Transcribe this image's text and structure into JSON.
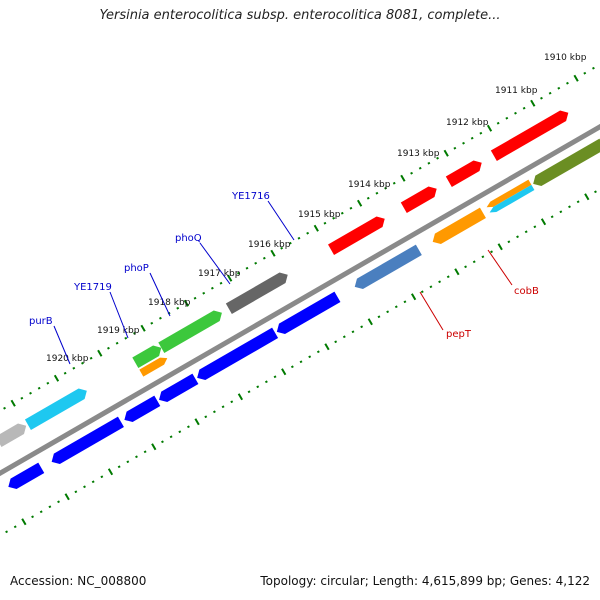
{
  "title": "Yersinia enterocolitica subsp. enterocolitica 8081, complete...",
  "footer": {
    "accession": "Accession: NC_008800",
    "stats": "Topology: circular; Length: 4,615,899 bp; Genes: 4,122"
  },
  "scale_labels": [
    "1910 kbp",
    "1911 kbp",
    "1912 kbp",
    "1913 kbp",
    "1914 kbp",
    "1915 kbp",
    "1916 kbp",
    "1917 kbp",
    "1918 kbp",
    "1919 kbp",
    "1920 kbp"
  ],
  "gene_labels": [
    {
      "text": "YE1716",
      "color": "#0000cc"
    },
    {
      "text": "phoQ",
      "color": "#0000cc"
    },
    {
      "text": "phoP",
      "color": "#0000cc"
    },
    {
      "text": "YE1719",
      "color": "#0000cc"
    },
    {
      "text": "purB",
      "color": "#0000cc"
    },
    {
      "text": "cobB",
      "color": "#cc0000"
    },
    {
      "text": "pepT",
      "color": "#cc0000"
    }
  ],
  "colors": {
    "tick": "#007a00",
    "backbone": "#8a8a8a",
    "cds_reverse": "#0000ff",
    "cds_red": "#ff0000",
    "cds_cyan": "#1ec8f0",
    "cds_green": "#3cc83c",
    "cds_grey": "#666666",
    "cds_lightgrey": "#b8b8b8",
    "cds_orange": "#ff9900",
    "cds_steel": "#4a7fbf",
    "cds_olive": "#6b8e23",
    "cds_pink": "#f08080"
  }
}
